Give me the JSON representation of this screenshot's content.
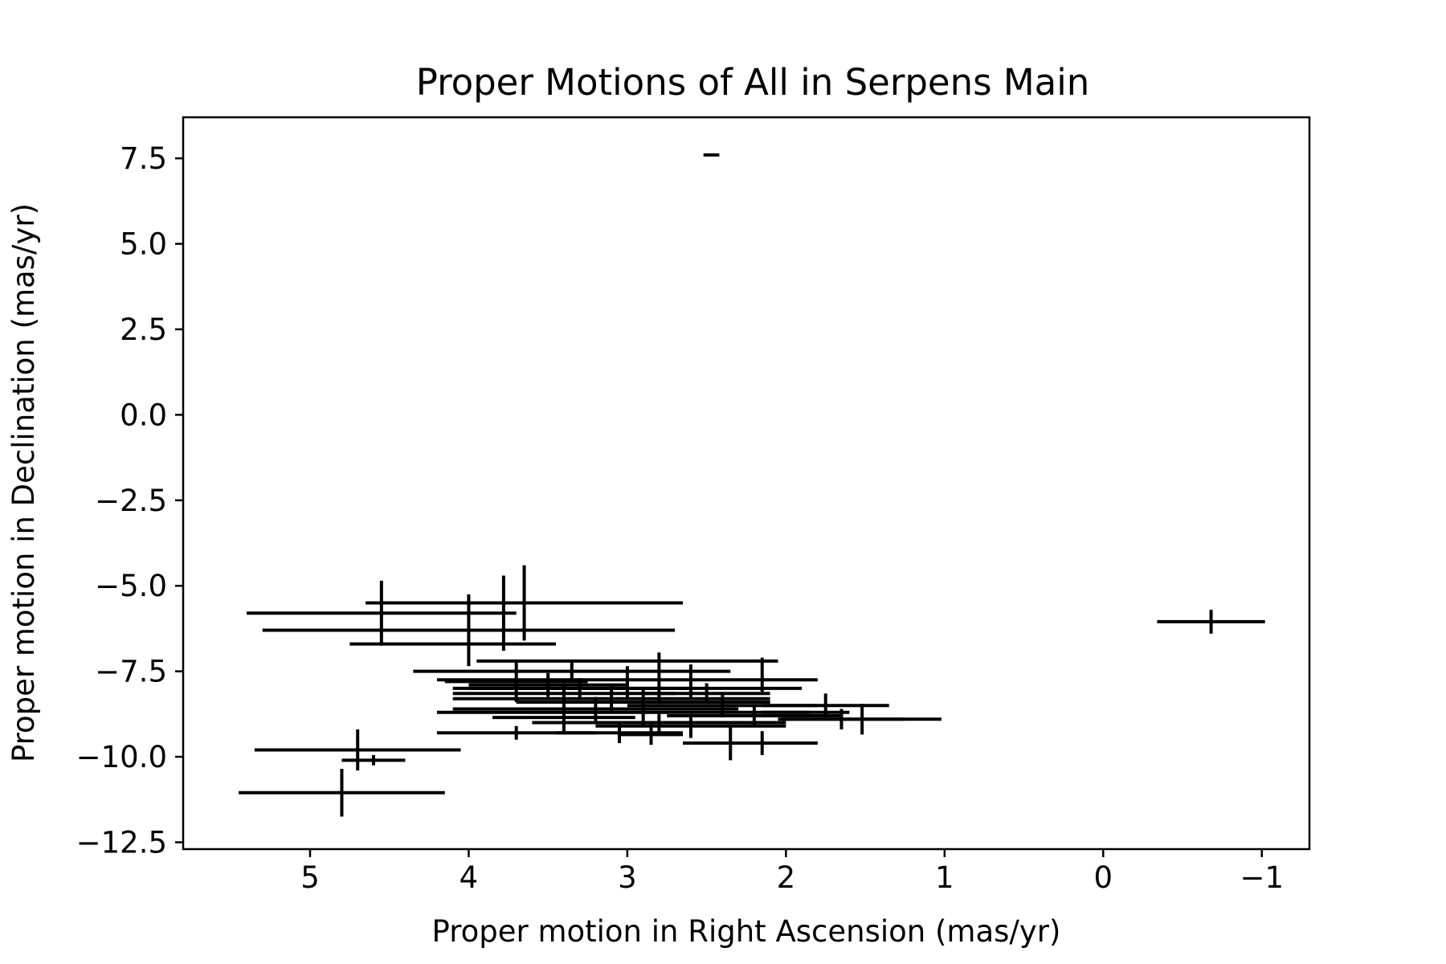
{
  "chart_data": {
    "type": "scatter",
    "title": "Proper Motions of All in Serpens Main",
    "xlabel": "Proper motion in Right Ascension (mas/yr)",
    "ylabel": "Proper motion in Declination (mas/yr)",
    "xlim": [
      5.8,
      -1.3
    ],
    "ylim": [
      -12.7,
      8.7
    ],
    "x_inverted": true,
    "grid": false,
    "legend": "none",
    "xticks": [
      5,
      4,
      3,
      2,
      1,
      0,
      -1
    ],
    "xtick_labels": [
      "5",
      "4",
      "3",
      "2",
      "1",
      "0",
      "−1"
    ],
    "yticks": [
      7.5,
      5.0,
      2.5,
      0.0,
      -2.5,
      -5.0,
      -7.5,
      -10.0,
      -12.5
    ],
    "ytick_labels": [
      "7.5",
      "5.0",
      "2.5",
      "0.0",
      "−2.5",
      "−5.0",
      "−7.5",
      "−10.0",
      "−12.5"
    ],
    "series": [
      {
        "color": "#000000",
        "points": [
          {
            "x": 2.47,
            "y": 7.6,
            "xerr": 0.05,
            "yerr": 0.03
          },
          {
            "x": -0.68,
            "y": -6.05,
            "xerr": 0.34,
            "yerr": 0.35
          },
          {
            "x": 4.55,
            "y": -5.8,
            "xerr": 0.85,
            "yerr": 0.95
          },
          {
            "x": 3.65,
            "y": -5.5,
            "xerr": 1.0,
            "yerr": 1.1
          },
          {
            "x": 3.78,
            "y": -5.8,
            "xerr": 0.0,
            "yerr": 1.1
          },
          {
            "x": 4.0,
            "y": -6.3,
            "xerr": 1.3,
            "yerr": 1.05
          },
          {
            "x": 4.1,
            "y": -6.7,
            "xerr": 0.65,
            "yerr": 0.0
          },
          {
            "x": 2.8,
            "y": -7.7,
            "xerr": 0.0,
            "yerr": 0.75
          },
          {
            "x": 3.0,
            "y": -7.2,
            "xerr": 0.95,
            "yerr": 0.0
          },
          {
            "x": 2.15,
            "y": -7.6,
            "xerr": 0.0,
            "yerr": 0.5
          },
          {
            "x": 3.35,
            "y": -7.5,
            "xerr": 1.0,
            "yerr": 0.3
          },
          {
            "x": 3.0,
            "y": -7.75,
            "xerr": 1.2,
            "yerr": 0.4
          },
          {
            "x": 3.7,
            "y": -7.8,
            "xerr": 0.45,
            "yerr": 0.6
          },
          {
            "x": 2.6,
            "y": -7.8,
            "xerr": 0.0,
            "yerr": 0.5
          },
          {
            "x": 3.5,
            "y": -7.9,
            "xerr": 0.5,
            "yerr": 0.35
          },
          {
            "x": 3.3,
            "y": -8.0,
            "xerr": 0.7,
            "yerr": 0.3
          },
          {
            "x": 3.0,
            "y": -8.0,
            "xerr": 1.1,
            "yerr": 0.3
          },
          {
            "x": 3.4,
            "y": -8.15,
            "xerr": 0.7,
            "yerr": 0.3
          },
          {
            "x": 2.5,
            "y": -8.15,
            "xerr": 0.4,
            "yerr": 0.3
          },
          {
            "x": 3.1,
            "y": -8.3,
            "xerr": 1.0,
            "yerr": 0.4
          },
          {
            "x": 2.9,
            "y": -8.4,
            "xerr": 0.8,
            "yerr": 0.4
          },
          {
            "x": 2.4,
            "y": -8.5,
            "xerr": 0.6,
            "yerr": 0.35
          },
          {
            "x": 3.2,
            "y": -8.6,
            "xerr": 0.9,
            "yerr": 0.35
          },
          {
            "x": 2.9,
            "y": -8.7,
            "xerr": 1.3,
            "yerr": 0.4
          },
          {
            "x": 2.2,
            "y": -8.8,
            "xerr": 0.55,
            "yerr": 0.3
          },
          {
            "x": 3.4,
            "y": -8.85,
            "xerr": 0.45,
            "yerr": 0.4
          },
          {
            "x": 2.0,
            "y": -8.7,
            "xerr": 0.15,
            "yerr": 0.0
          },
          {
            "x": 1.75,
            "y": -8.5,
            "xerr": 0.4,
            "yerr": 0.35
          },
          {
            "x": 1.65,
            "y": -8.9,
            "xerr": 0.4,
            "yerr": 0.3
          },
          {
            "x": 1.52,
            "y": -8.9,
            "xerr": 0.5,
            "yerr": 0.45
          },
          {
            "x": 2.8,
            "y": -9.0,
            "xerr": 0.8,
            "yerr": 0.3
          },
          {
            "x": 2.6,
            "y": -9.1,
            "xerr": 0.6,
            "yerr": 0.35
          },
          {
            "x": 3.05,
            "y": -9.3,
            "xerr": 0.4,
            "yerr": 0.3
          },
          {
            "x": 2.85,
            "y": -9.35,
            "xerr": 0.2,
            "yerr": 0.3
          },
          {
            "x": 3.7,
            "y": -9.3,
            "xerr": 0.5,
            "yerr": 0.2
          },
          {
            "x": 2.35,
            "y": -9.6,
            "xerr": 0.3,
            "yerr": 0.5
          },
          {
            "x": 2.15,
            "y": -9.6,
            "xerr": 0.35,
            "yerr": 0.35
          },
          {
            "x": 4.7,
            "y": -9.8,
            "xerr": 0.65,
            "yerr": 0.6
          },
          {
            "x": 4.6,
            "y": -10.1,
            "xerr": 0.2,
            "yerr": 0.15
          },
          {
            "x": 4.8,
            "y": -11.05,
            "xerr": 0.65,
            "yerr": 0.7
          }
        ]
      }
    ]
  }
}
